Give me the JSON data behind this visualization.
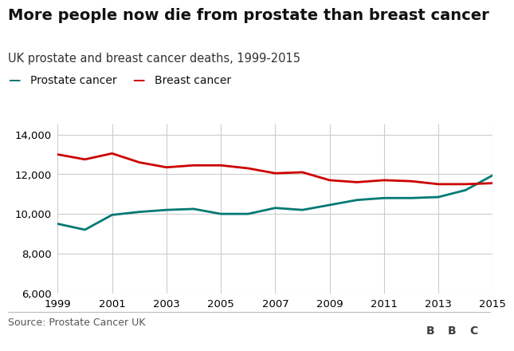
{
  "title": "More people now die from prostate than breast cancer",
  "subtitle": "UK prostate and breast cancer deaths, 1999-2015",
  "source": "Source: Prostate Cancer UK",
  "years": [
    1999,
    2000,
    2001,
    2002,
    2003,
    2004,
    2005,
    2006,
    2007,
    2008,
    2009,
    2010,
    2011,
    2012,
    2013,
    2014,
    2015
  ],
  "prostate": [
    9500,
    9200,
    9950,
    10100,
    10200,
    10250,
    10000,
    10000,
    10300,
    10200,
    10450,
    10700,
    10800,
    10800,
    10850,
    11200,
    11950
  ],
  "breast": [
    13000,
    12750,
    13050,
    12600,
    12350,
    12450,
    12450,
    12300,
    12050,
    12100,
    11700,
    11600,
    11700,
    11650,
    11500,
    11500,
    11550
  ],
  "prostate_color": "#007a73",
  "breast_color": "#cc0000",
  "background_color": "#ffffff",
  "grid_color": "#cccccc",
  "title_fontsize": 14,
  "subtitle_fontsize": 10.5,
  "legend_fontsize": 10,
  "tick_fontsize": 9.5,
  "source_fontsize": 9,
  "ylim": [
    6000,
    14500
  ],
  "yticks": [
    6000,
    8000,
    10000,
    12000,
    14000
  ],
  "xticks": [
    1999,
    2001,
    2003,
    2005,
    2007,
    2009,
    2011,
    2013,
    2015
  ],
  "line_width": 2.0,
  "bbc_box_color": "#3d3d3d"
}
